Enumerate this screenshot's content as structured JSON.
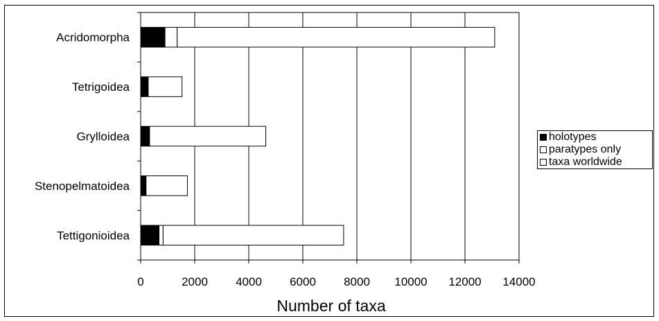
{
  "chart_data": {
    "type": "bar",
    "orientation": "horizontal",
    "stacked": true,
    "categories": [
      "Acridomorpha",
      "Tetrigoidea",
      "Grylloidea",
      "Stenopelmatoidea",
      "Tettigonioidea"
    ],
    "series": [
      {
        "name": "holotypes",
        "color": "#000000",
        "values": [
          900,
          280,
          330,
          200,
          680
        ]
      },
      {
        "name": "paratypes only",
        "color": "#ffffff",
        "values": [
          450,
          0,
          0,
          0,
          150
        ]
      },
      {
        "name": "taxa worldwide",
        "color": "#ffffff",
        "values": [
          11750,
          1250,
          4300,
          1530,
          6680
        ]
      }
    ],
    "xlabel": "Number of taxa",
    "ylabel": "",
    "xlim": [
      0,
      14000
    ],
    "xticks": [
      "0",
      "2000",
      "4000",
      "6000",
      "8000",
      "10000",
      "12000",
      "14000"
    ],
    "grid": "vertical",
    "legend_position": "right"
  }
}
